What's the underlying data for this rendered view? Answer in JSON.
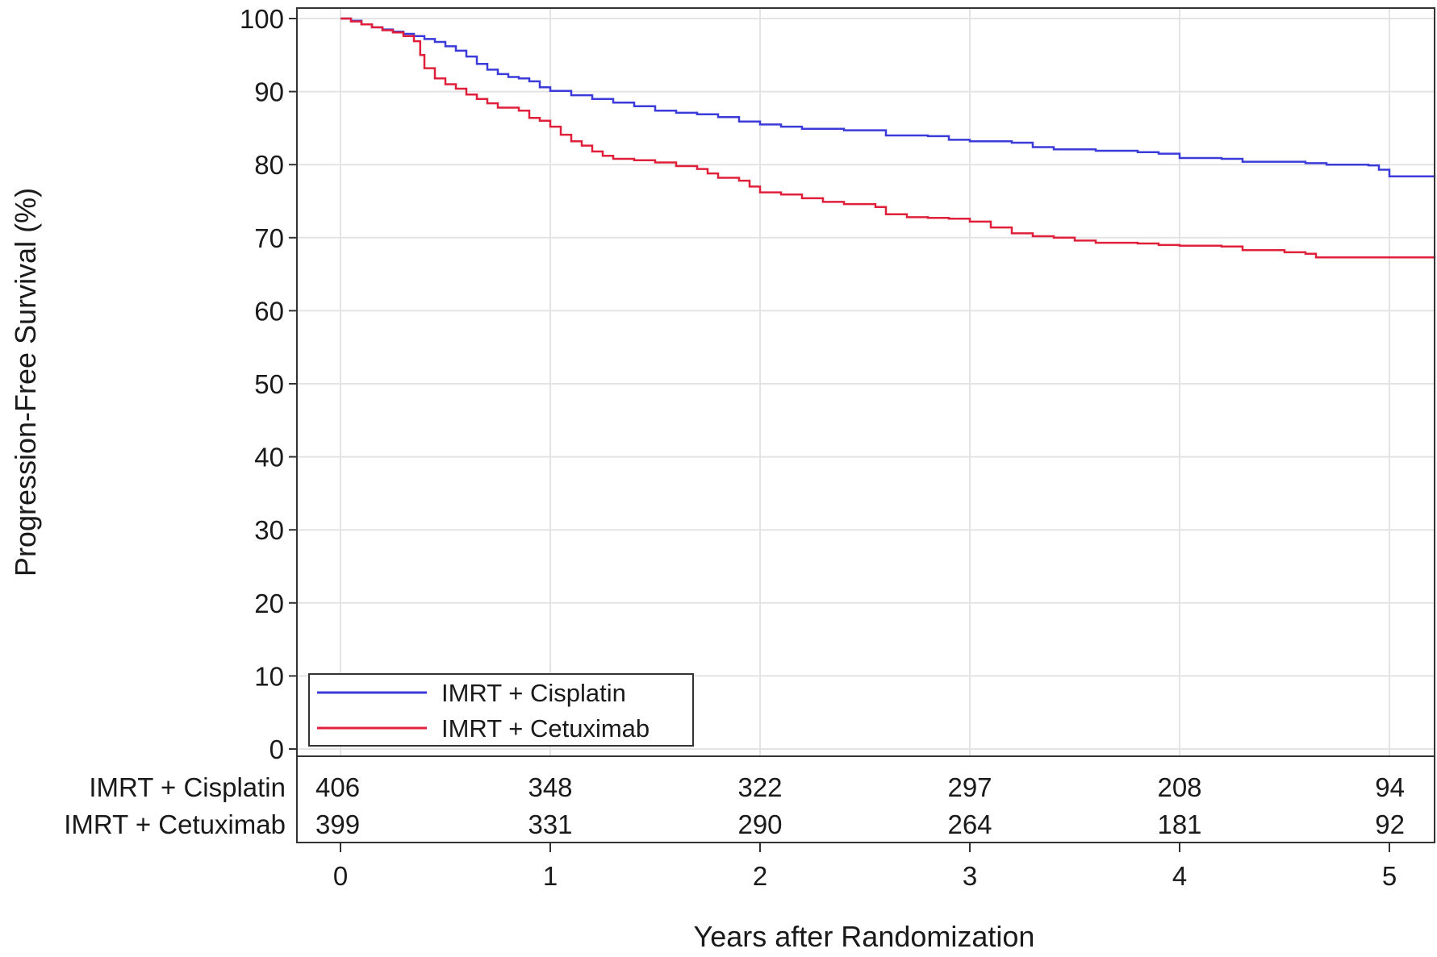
{
  "chart_data": {
    "type": "line",
    "title": "",
    "xlabel": "Years after Randomization",
    "ylabel": "Progression-Free Survival (%)",
    "xlim": [
      -0.2,
      5.22
    ],
    "ylim": [
      0,
      101
    ],
    "x_ticks": [
      0,
      1,
      2,
      3,
      4,
      5
    ],
    "y_ticks": [
      0,
      10,
      20,
      30,
      40,
      50,
      60,
      70,
      80,
      90,
      100
    ],
    "grid": true,
    "legend_position": "bottom-left",
    "step": true,
    "series": [
      {
        "name": "IMRT + Cisplatin",
        "color": "#3b3bd9",
        "points": [
          [
            0.0,
            100
          ],
          [
            0.05,
            99.7
          ],
          [
            0.1,
            99.2
          ],
          [
            0.15,
            98.8
          ],
          [
            0.2,
            98.5
          ],
          [
            0.25,
            98.2
          ],
          [
            0.3,
            97.9
          ],
          [
            0.35,
            97.6
          ],
          [
            0.4,
            97.2
          ],
          [
            0.45,
            96.8
          ],
          [
            0.5,
            96.2
          ],
          [
            0.55,
            95.6
          ],
          [
            0.6,
            94.8
          ],
          [
            0.65,
            93.8
          ],
          [
            0.7,
            93.0
          ],
          [
            0.75,
            92.4
          ],
          [
            0.8,
            92.0
          ],
          [
            0.85,
            91.8
          ],
          [
            0.9,
            91.4
          ],
          [
            0.95,
            90.6
          ],
          [
            1.0,
            90.1
          ],
          [
            1.1,
            89.5
          ],
          [
            1.2,
            89.0
          ],
          [
            1.3,
            88.5
          ],
          [
            1.4,
            88.0
          ],
          [
            1.5,
            87.4
          ],
          [
            1.6,
            87.1
          ],
          [
            1.7,
            86.9
          ],
          [
            1.8,
            86.5
          ],
          [
            1.9,
            85.9
          ],
          [
            2.0,
            85.5
          ],
          [
            2.1,
            85.2
          ],
          [
            2.2,
            84.9
          ],
          [
            2.4,
            84.7
          ],
          [
            2.6,
            84.0
          ],
          [
            2.8,
            83.9
          ],
          [
            2.9,
            83.4
          ],
          [
            3.0,
            83.2
          ],
          [
            3.2,
            83.0
          ],
          [
            3.3,
            82.4
          ],
          [
            3.4,
            82.1
          ],
          [
            3.6,
            81.9
          ],
          [
            3.8,
            81.7
          ],
          [
            3.9,
            81.5
          ],
          [
            4.0,
            80.9
          ],
          [
            4.2,
            80.8
          ],
          [
            4.3,
            80.4
          ],
          [
            4.6,
            80.2
          ],
          [
            4.7,
            80.0
          ],
          [
            4.9,
            79.9
          ],
          [
            4.95,
            79.3
          ],
          [
            5.0,
            78.4
          ],
          [
            5.22,
            78.4
          ]
        ]
      },
      {
        "name": "IMRT + Cetuximab",
        "color": "#e0203a",
        "points": [
          [
            0.0,
            100
          ],
          [
            0.05,
            99.6
          ],
          [
            0.1,
            99.2
          ],
          [
            0.15,
            98.8
          ],
          [
            0.2,
            98.4
          ],
          [
            0.25,
            98.1
          ],
          [
            0.3,
            97.6
          ],
          [
            0.35,
            96.9
          ],
          [
            0.38,
            95.0
          ],
          [
            0.4,
            93.2
          ],
          [
            0.45,
            91.8
          ],
          [
            0.5,
            91.0
          ],
          [
            0.55,
            90.4
          ],
          [
            0.6,
            89.6
          ],
          [
            0.65,
            89.0
          ],
          [
            0.7,
            88.4
          ],
          [
            0.75,
            87.8
          ],
          [
            0.85,
            87.4
          ],
          [
            0.9,
            86.4
          ],
          [
            0.95,
            86.0
          ],
          [
            1.0,
            85.2
          ],
          [
            1.05,
            84.1
          ],
          [
            1.1,
            83.2
          ],
          [
            1.15,
            82.6
          ],
          [
            1.2,
            81.8
          ],
          [
            1.25,
            81.2
          ],
          [
            1.3,
            80.8
          ],
          [
            1.4,
            80.6
          ],
          [
            1.5,
            80.3
          ],
          [
            1.6,
            79.8
          ],
          [
            1.7,
            79.4
          ],
          [
            1.75,
            78.8
          ],
          [
            1.8,
            78.2
          ],
          [
            1.9,
            77.8
          ],
          [
            1.95,
            77.0
          ],
          [
            2.0,
            76.2
          ],
          [
            2.1,
            75.9
          ],
          [
            2.2,
            75.4
          ],
          [
            2.3,
            74.9
          ],
          [
            2.4,
            74.6
          ],
          [
            2.55,
            74.2
          ],
          [
            2.6,
            73.2
          ],
          [
            2.7,
            72.8
          ],
          [
            2.8,
            72.7
          ],
          [
            2.9,
            72.6
          ],
          [
            3.0,
            72.2
          ],
          [
            3.1,
            71.4
          ],
          [
            3.2,
            70.6
          ],
          [
            3.3,
            70.2
          ],
          [
            3.4,
            70.0
          ],
          [
            3.5,
            69.6
          ],
          [
            3.6,
            69.3
          ],
          [
            3.8,
            69.2
          ],
          [
            3.9,
            69.0
          ],
          [
            4.0,
            68.9
          ],
          [
            4.2,
            68.8
          ],
          [
            4.3,
            68.3
          ],
          [
            4.5,
            68.0
          ],
          [
            4.6,
            67.8
          ],
          [
            4.65,
            67.3
          ],
          [
            5.0,
            67.3
          ],
          [
            5.22,
            67.3
          ]
        ]
      }
    ],
    "risk_table": {
      "rows": [
        {
          "label": "IMRT + Cisplatin",
          "counts": [
            "406",
            "348",
            "322",
            "297",
            "208",
            "94"
          ]
        },
        {
          "label": "IMRT + Cetuximab",
          "counts": [
            "399",
            "331",
            "290",
            "264",
            "181",
            "92"
          ]
        }
      ]
    }
  }
}
